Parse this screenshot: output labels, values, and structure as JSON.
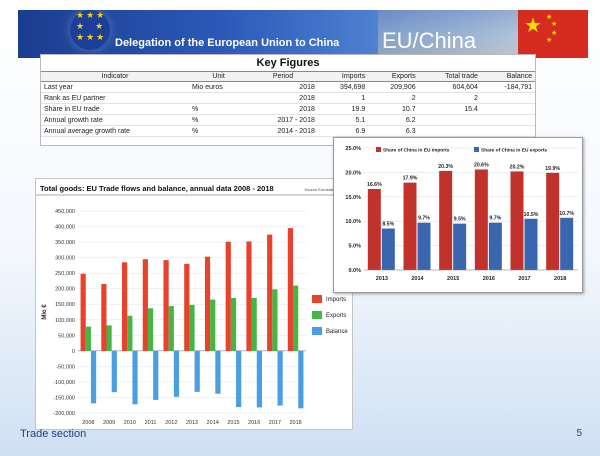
{
  "header": {
    "delegation_title": "Delegation of the European Union to China",
    "slide_title": "EU/China"
  },
  "key_figures": {
    "title": "Key Figures",
    "columns": [
      "Indicator",
      "Unit",
      "Period",
      "Imports",
      "Exports",
      "Total trade",
      "Balance"
    ],
    "rows": [
      [
        "Last year",
        "Mio euros",
        "2018",
        "394,698",
        "209,906",
        "604,604",
        "-184,791"
      ],
      [
        "Rank as EU partner",
        "",
        "2018",
        "1",
        "2",
        "2",
        ""
      ],
      [
        "Share in EU trade",
        "%",
        "2018",
        "19.9",
        "10.7",
        "15.4",
        ""
      ],
      [
        "Annual growth rate",
        "%",
        "2017 - 2018",
        "5.1",
        "6.2",
        "",
        ""
      ],
      [
        "Annual average growth rate",
        "%",
        "2014 - 2018",
        "6.9",
        "6.3",
        "",
        ""
      ]
    ]
  },
  "chart_data": [
    {
      "type": "bar",
      "title": "Total goods: EU Trade flows and balance, annual data 2008 - 2018",
      "source": "Source Eurostat Comext",
      "ylabel": "Mio €",
      "xlabel": "",
      "categories": [
        "2008",
        "2009",
        "2010",
        "2011",
        "2012",
        "2013",
        "2014",
        "2015",
        "2016",
        "2017",
        "2018"
      ],
      "ylim": [
        -200000,
        450000
      ],
      "yticks": [
        "450,000",
        "400,000",
        "350,000",
        "300,000",
        "250,000",
        "200,000",
        "150,000",
        "100,000",
        "50,000",
        "0",
        "-50,000",
        "-100,000",
        "-150,000",
        "-200,000"
      ],
      "legend_position": "right",
      "series": [
        {
          "name": "Imports",
          "color": "#e8412c",
          "values": [
            248000,
            215000,
            285000,
            295000,
            292000,
            280000,
            303000,
            351000,
            352000,
            374000,
            395000
          ]
        },
        {
          "name": "Exports",
          "color": "#46b544",
          "values": [
            78000,
            82000,
            113000,
            137000,
            144000,
            148000,
            165000,
            170000,
            170000,
            198000,
            210000
          ]
        },
        {
          "name": "Balance",
          "color": "#4a9ee3",
          "values": [
            -169000,
            -133000,
            -172000,
            -158000,
            -148000,
            -132000,
            -138000,
            -181000,
            -182000,
            -176000,
            -185000
          ]
        }
      ]
    },
    {
      "type": "bar",
      "title": "",
      "categories": [
        "2013",
        "2014",
        "2015",
        "2016",
        "2017",
        "2018"
      ],
      "ylim": [
        0,
        25
      ],
      "yticks": [
        "25.0%",
        "20.0%",
        "15.0%",
        "10.0%",
        "5.0%",
        "0.0%"
      ],
      "legend_position": "top",
      "grid": true,
      "series": [
        {
          "name": "Share of China in EU imports",
          "color": "#c1322c",
          "values": [
            16.6,
            17.9,
            20.3,
            20.6,
            20.2,
            19.9
          ],
          "labels": [
            "16.6%",
            "17.9%",
            "20.3%",
            "20.6%",
            "20.2%",
            "19.9%"
          ]
        },
        {
          "name": "Share of China in EU exports",
          "color": "#3a66b0",
          "values": [
            8.5,
            9.7,
            9.5,
            9.7,
            10.5,
            10.7
          ],
          "labels": [
            "8.5%",
            "9.7%",
            "9.5%",
            "9.7%",
            "10.5%",
            "10.7%"
          ]
        }
      ]
    }
  ],
  "footer": {
    "section": "Trade section",
    "page": "5"
  }
}
